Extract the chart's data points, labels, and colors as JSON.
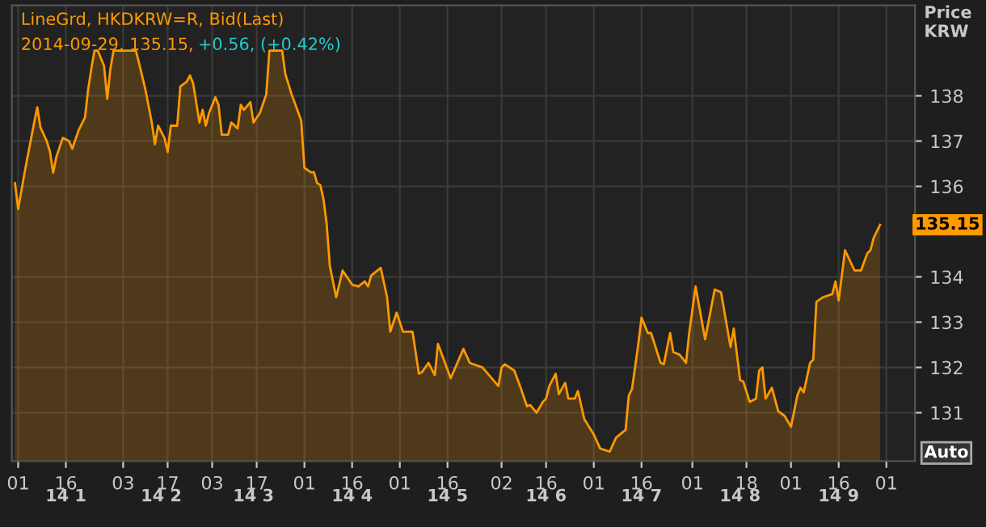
{
  "chart_data": {
    "type": "area",
    "title": "LineGrd, HKDKRW=R, Bid(Last)",
    "subtitle": "2014-09-29, 135.15,",
    "ylabel": "Price\nKRW",
    "annotations": [
      "+0.56, (+0.42%)",
      {
        "text": "135.15",
        "x": "2014-09-29",
        "y": 135.15
      },
      "Auto"
    ],
    "x": [
      "2013-12-31",
      "2014-01-01",
      "2014-01-03",
      "2014-01-06",
      "2014-01-07",
      "2014-01-08",
      "2014-01-10",
      "2014-01-11",
      "2014-01-12",
      "2014-01-13",
      "2014-01-15",
      "2014-01-17",
      "2014-01-18",
      "2014-01-20",
      "2014-01-22",
      "2014-01-23",
      "2014-01-24",
      "2014-01-25",
      "2014-01-26",
      "2014-01-28",
      "2014-01-29",
      "2014-01-30",
      "2014-01-31",
      "2014-02-07",
      "2014-02-08",
      "2014-02-10",
      "2014-02-12",
      "2014-02-13",
      "2014-02-14",
      "2014-02-16",
      "2014-02-17",
      "2014-02-18",
      "2014-02-20",
      "2014-02-21",
      "2014-02-23",
      "2014-02-24",
      "2014-02-25",
      "2014-02-27",
      "2014-02-28",
      "2014-03-01",
      "2014-03-02",
      "2014-03-04",
      "2014-03-05",
      "2014-03-06",
      "2014-03-08",
      "2014-03-09",
      "2014-03-11",
      "2014-03-12",
      "2014-03-13",
      "2014-03-15",
      "2014-03-16",
      "2014-03-18",
      "2014-03-20",
      "2014-03-21",
      "2014-03-25",
      "2014-03-26",
      "2014-03-28",
      "2014-03-31",
      "2014-04-01",
      "2014-04-03",
      "2014-04-04",
      "2014-04-05",
      "2014-04-06",
      "2014-04-07",
      "2014-04-08",
      "2014-04-09",
      "2014-04-11",
      "2014-04-13",
      "2014-04-16",
      "2014-04-18",
      "2014-04-20",
      "2014-04-21",
      "2014-04-22",
      "2014-04-25",
      "2014-04-27",
      "2014-04-28",
      "2014-04-30",
      "2014-05-02",
      "2014-05-05",
      "2014-05-07",
      "2014-05-08",
      "2014-05-10",
      "2014-05-12",
      "2014-05-13",
      "2014-05-17",
      "2014-05-21",
      "2014-05-23",
      "2014-05-27",
      "2014-06-01",
      "2014-06-02",
      "2014-06-03",
      "2014-06-06",
      "2014-06-08",
      "2014-06-10",
      "2014-06-11",
      "2014-06-13",
      "2014-06-15",
      "2014-06-16",
      "2014-06-17",
      "2014-06-19",
      "2014-06-20",
      "2014-06-22",
      "2014-06-23",
      "2014-06-25",
      "2014-06-26",
      "2014-06-28",
      "2014-07-01",
      "2014-07-03",
      "2014-07-06",
      "2014-07-08",
      "2014-07-11",
      "2014-07-12",
      "2014-07-13",
      "2014-07-15",
      "2014-07-16",
      "2014-07-18",
      "2014-07-19",
      "2014-07-22",
      "2014-07-23",
      "2014-07-25",
      "2014-07-26",
      "2014-07-28",
      "2014-07-30",
      "2014-07-31",
      "2014-08-02",
      "2014-08-05",
      "2014-08-08",
      "2014-08-10",
      "2014-08-13",
      "2014-08-14",
      "2014-08-16",
      "2014-08-17",
      "2014-08-19",
      "2014-08-21",
      "2014-08-22",
      "2014-08-23",
      "2014-08-24",
      "2014-08-26",
      "2014-08-28",
      "2014-08-30",
      "2014-09-01",
      "2014-09-03",
      "2014-09-04",
      "2014-09-05",
      "2014-09-07",
      "2014-09-08",
      "2014-09-09",
      "2014-09-11",
      "2014-09-14",
      "2014-09-15",
      "2014-09-16",
      "2014-09-18",
      "2014-09-21",
      "2014-09-23",
      "2014-09-25",
      "2014-09-26",
      "2014-09-27",
      "2014-09-29"
    ],
    "series": [
      {
        "color": "#ff9900",
        "values": [
          136.07,
          135.5,
          136.3,
          137.4,
          137.75,
          137.3,
          137.0,
          136.76,
          136.3,
          136.65,
          137.07,
          137.0,
          136.83,
          137.24,
          137.52,
          138.14,
          138.6,
          139,
          139,
          138.66,
          137.93,
          138.6,
          139,
          139,
          138.72,
          138.14,
          137.41,
          136.93,
          137.34,
          137.07,
          136.76,
          137.34,
          137.34,
          138.21,
          138.31,
          138.45,
          138.28,
          137.41,
          137.69,
          137.34,
          137.62,
          137.97,
          137.8,
          137.14,
          137.14,
          137.41,
          137.28,
          137.8,
          137.69,
          137.86,
          137.41,
          137.62,
          138.03,
          139,
          139,
          138.48,
          138.03,
          137.45,
          136.41,
          136.31,
          136.31,
          136.07,
          136.03,
          135.72,
          135.17,
          134.24,
          133.55,
          134.14,
          133.83,
          133.79,
          133.9,
          133.79,
          134.03,
          134.2,
          133.55,
          132.79,
          133.21,
          132.79,
          132.79,
          131.86,
          131.9,
          132.1,
          131.83,
          132.52,
          131.76,
          132.41,
          132.1,
          132.0,
          131.59,
          132.0,
          132.07,
          131.93,
          131.55,
          131.14,
          131.17,
          131.0,
          131.24,
          131.31,
          131.59,
          131.86,
          131.41,
          131.66,
          131.31,
          131.31,
          131.48,
          130.86,
          130.52,
          130.21,
          130.14,
          130.45,
          130.62,
          131.38,
          131.52,
          132.52,
          133.1,
          132.76,
          132.76,
          132.1,
          132.07,
          132.76,
          132.34,
          132.28,
          132.1,
          132.76,
          133.79,
          132.62,
          133.72,
          133.66,
          132.45,
          132.86,
          131.72,
          131.69,
          131.24,
          131.31,
          131.93,
          132.0,
          131.31,
          131.55,
          131.03,
          130.93,
          130.69,
          131.38,
          131.55,
          131.45,
          132.1,
          132.17,
          133.45,
          133.55,
          133.62,
          133.9,
          133.48,
          134.59,
          134.14,
          134.14,
          134.52,
          134.59,
          134.86,
          135.15
        ]
      }
    ],
    "xlim": [
      "2013-12-30",
      "2014-10-10"
    ],
    "xticks": [
      {
        "value": "2014-01-01",
        "label": "01"
      },
      {
        "value": "2014-01-16",
        "label": "16"
      },
      {
        "value": "2014-02-03",
        "label": "03"
      },
      {
        "value": "2014-02-17",
        "label": "17"
      },
      {
        "value": "2014-03-03",
        "label": "03"
      },
      {
        "value": "2014-03-17",
        "label": "17"
      },
      {
        "value": "2014-04-01",
        "label": "01"
      },
      {
        "value": "2014-04-16",
        "label": "16"
      },
      {
        "value": "2014-05-01",
        "label": "01"
      },
      {
        "value": "2014-05-16",
        "label": "16"
      },
      {
        "value": "2014-06-02",
        "label": "02"
      },
      {
        "value": "2014-06-16",
        "label": "16"
      },
      {
        "value": "2014-07-01",
        "label": "01"
      },
      {
        "value": "2014-07-16",
        "label": "16"
      },
      {
        "value": "2014-08-01",
        "label": "01"
      },
      {
        "value": "2014-08-18",
        "label": "18"
      },
      {
        "value": "2014-09-01",
        "label": "01"
      },
      {
        "value": "2014-09-16",
        "label": "16"
      },
      {
        "value": "2014-10-01",
        "label": "01"
      }
    ],
    "x2lim": [
      "2013-12-30",
      "2014-10-10"
    ],
    "x2ticks": [
      {
        "value": "2014-01-16",
        "label": "14 1"
      },
      {
        "value": "2014-02-15",
        "label": "14 2"
      },
      {
        "value": "2014-03-16",
        "label": "14 3"
      },
      {
        "value": "2014-04-16",
        "label": "14 4"
      },
      {
        "value": "2014-05-16",
        "label": "14 5"
      },
      {
        "value": "2014-06-16",
        "label": "14 6"
      },
      {
        "value": "2014-07-16",
        "label": "14 7"
      },
      {
        "value": "2014-08-16",
        "label": "14 8"
      },
      {
        "value": "2014-09-16",
        "label": "14 9"
      }
    ],
    "ylim": [
      129.93,
      140
    ],
    "yticks": [
      131,
      132,
      133,
      134,
      136,
      137,
      138
    ],
    "grid": true
  }
}
